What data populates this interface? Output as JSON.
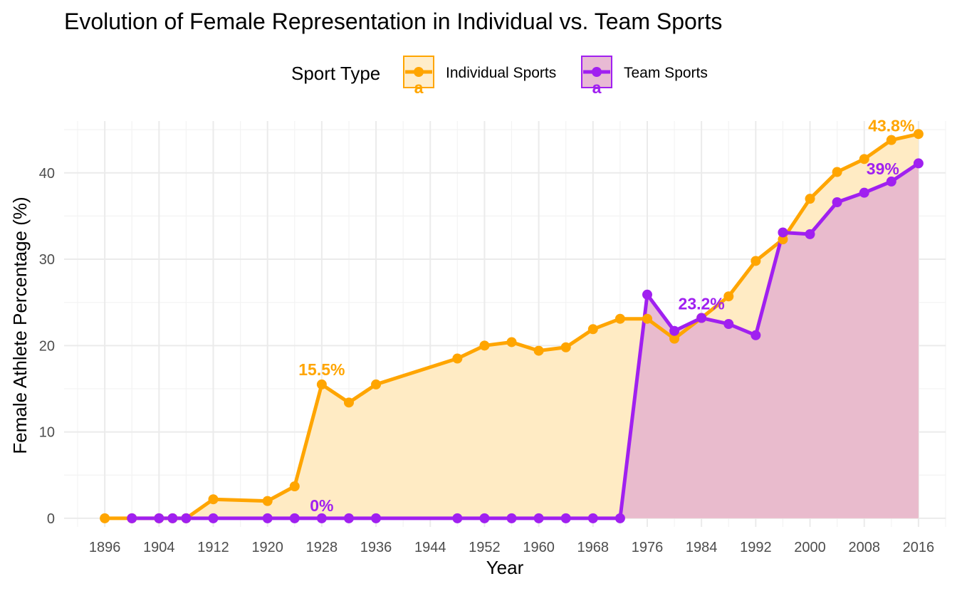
{
  "chart_data": {
    "type": "area",
    "title": "Evolution of Female Representation in Individual vs. Team Sports",
    "xlabel": "Year",
    "ylabel": "Female Athlete Percentage (%)",
    "xlim": [
      1890,
      2020
    ],
    "ylim": [
      -1,
      46
    ],
    "x_ticks": [
      1896,
      1904,
      1912,
      1920,
      1928,
      1936,
      1944,
      1952,
      1960,
      1968,
      1976,
      1984,
      1992,
      2000,
      2008,
      2016
    ],
    "y_ticks": [
      0,
      10,
      20,
      30,
      40
    ],
    "grid": true,
    "legend": {
      "title": "Sport Type",
      "placement": "top",
      "key_glyph_text": "a"
    },
    "series": [
      {
        "name": "Individual Sports",
        "color": "#FFA500",
        "fill": "#FFEBC4",
        "x": [
          1896,
          1900,
          1904,
          1906,
          1908,
          1912,
          1920,
          1924,
          1928,
          1932,
          1936,
          1948,
          1952,
          1956,
          1960,
          1964,
          1968,
          1972,
          1976,
          1980,
          1984,
          1988,
          1992,
          1996,
          2000,
          2004,
          2008,
          2012,
          2016
        ],
        "y": [
          0,
          0,
          0,
          0,
          0,
          2.2,
          2.0,
          3.7,
          15.5,
          13.4,
          15.5,
          18.5,
          20.0,
          20.4,
          19.4,
          19.8,
          21.9,
          23.1,
          23.1,
          20.8,
          23.2,
          25.7,
          29.8,
          32.3,
          37.0,
          40.1,
          41.6,
          43.8,
          44.5
        ]
      },
      {
        "name": "Team Sports",
        "color": "#A020F0",
        "fill": "#E5B3CF",
        "x": [
          1900,
          1904,
          1906,
          1908,
          1912,
          1920,
          1924,
          1928,
          1932,
          1936,
          1948,
          1952,
          1956,
          1960,
          1964,
          1968,
          1972,
          1976,
          1980,
          1984,
          1988,
          1992,
          1996,
          2000,
          2004,
          2008,
          2012,
          2016
        ],
        "y": [
          0,
          0,
          0,
          0,
          0,
          0,
          0,
          0,
          0,
          0,
          0,
          0,
          0,
          0,
          0,
          0,
          0,
          25.9,
          21.7,
          23.2,
          22.5,
          21.2,
          33.1,
          32.9,
          36.6,
          37.7,
          39.0,
          41.1
        ]
      }
    ],
    "annotations": [
      {
        "text": "15.5%",
        "x": 1928,
        "y": 15.5,
        "series": "Individual Sports"
      },
      {
        "text": "43.8%",
        "x": 2012,
        "y": 43.8,
        "series": "Individual Sports"
      },
      {
        "text": "0%",
        "x": 1928,
        "y": 0,
        "series": "Team Sports"
      },
      {
        "text": "23.2%",
        "x": 1984,
        "y": 23.2,
        "series": "Team Sports"
      },
      {
        "text": "39%",
        "x": 2012,
        "y": 39.0,
        "series": "Team Sports"
      }
    ]
  }
}
